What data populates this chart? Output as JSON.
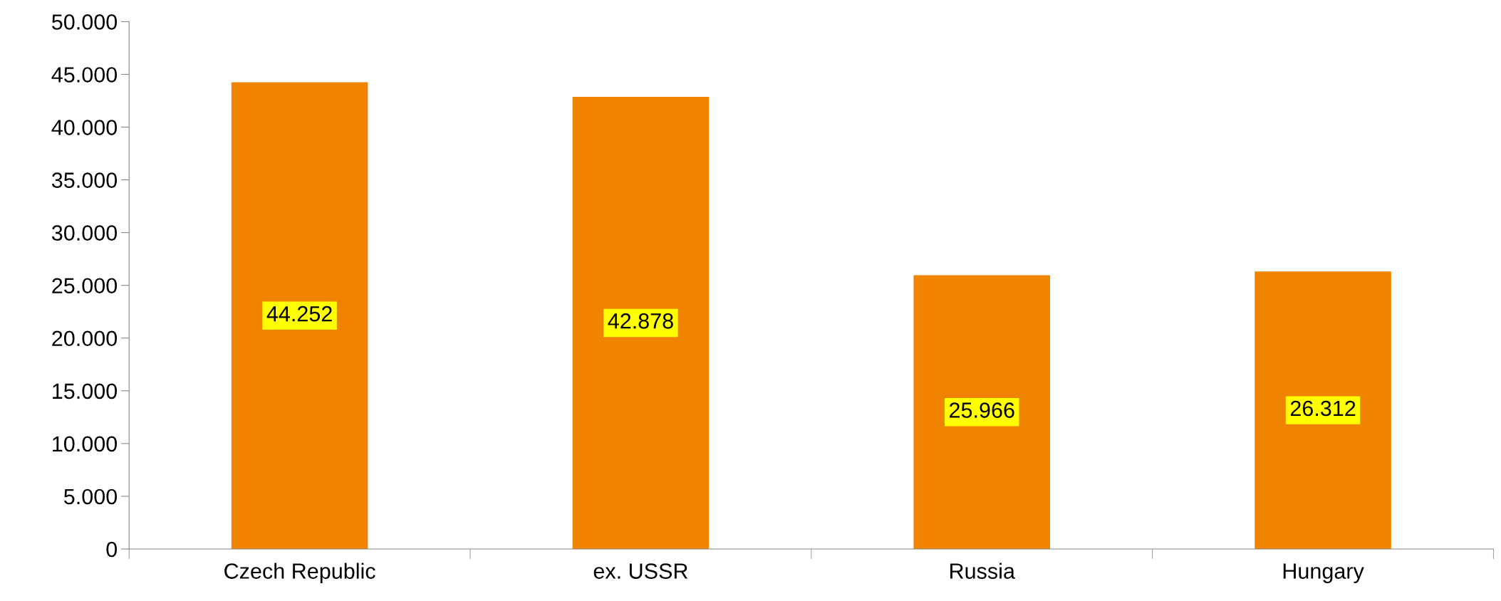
{
  "chart_data": {
    "type": "bar",
    "categories": [
      "Czech Republic",
      "ex. USSR",
      "Russia",
      "Hungary"
    ],
    "values": [
      44252,
      42878,
      25966,
      26312
    ],
    "value_labels": [
      "44.252",
      "42.878",
      "25.966",
      "26.312"
    ],
    "color": "#f08300",
    "ylim": [
      0,
      50000
    ],
    "yticks": [
      0,
      {
        "value": 5000,
        "label": "5.000"
      },
      {
        "value": 10000,
        "label": "10.000"
      },
      {
        "value": 15000,
        "label": "15.000"
      },
      {
        "value": 20000,
        "label": "20.000"
      },
      {
        "value": 25000,
        "label": "25.000"
      },
      {
        "value": 30000,
        "label": "30.000"
      },
      {
        "value": 35000,
        "label": "35.000"
      },
      {
        "value": 40000,
        "label": "40.000"
      },
      {
        "value": 45000,
        "label": "45.000"
      },
      {
        "value": 50000,
        "label": "50.000"
      }
    ],
    "grid": false,
    "legend": false
  }
}
